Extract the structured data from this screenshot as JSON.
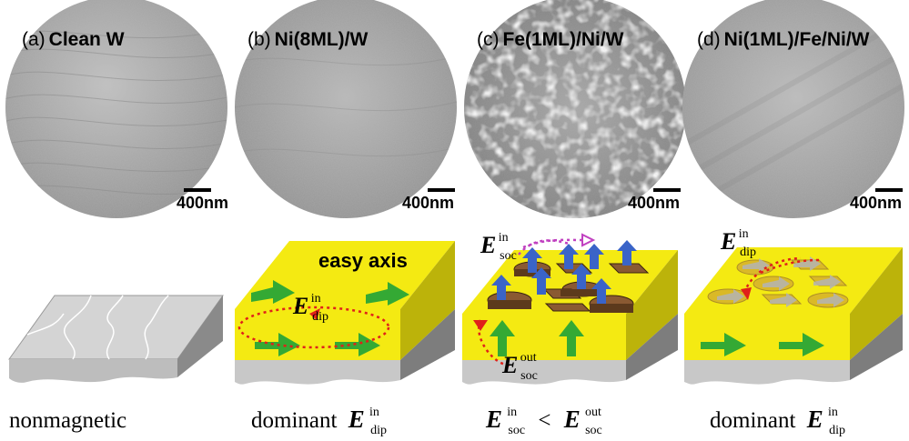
{
  "panels": [
    {
      "letter": "(a)",
      "title": "Clean W",
      "scalebar": "400nm",
      "caption": "nonmagnetic"
    },
    {
      "letter": "(b)",
      "title": "Ni(8ML)/W",
      "scalebar": "400nm",
      "caption": "dominant"
    },
    {
      "letter": "(c)",
      "title": "Fe(1ML)/Ni/W",
      "scalebar": "400nm",
      "caption": ""
    },
    {
      "letter": "(d)",
      "title": "Ni(1ML)/Fe/Ni/W",
      "scalebar": "400nm",
      "caption": "dominant"
    }
  ],
  "symbols": {
    "E": "E",
    "dip": "dip",
    "soc": "soc",
    "in": "in",
    "out": "out",
    "less_than": "<"
  },
  "easy_axis": "easy axis",
  "colors": {
    "yellow_layer": "#f4ea12",
    "substrate_grey": "#c8c8c8",
    "arrow_green": "#34a934",
    "spin_blue": "#3a64c8",
    "island_brown": "#8a5a32",
    "dip_path_red": "#e0201a",
    "soc_path_magenta": "#c040c0"
  }
}
